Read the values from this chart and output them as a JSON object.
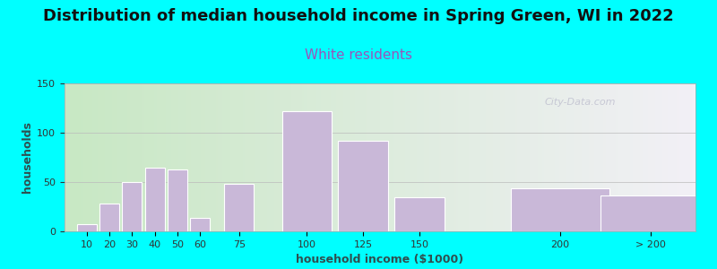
{
  "title": "Distribution of median household income in Spring Green, WI in 2022",
  "subtitle": "White residents",
  "xlabel": "household income ($1000)",
  "ylabel": "households",
  "bar_labels": [
    "10",
    "20",
    "30",
    "40",
    "50",
    "60",
    "75",
    "100",
    "125",
    "150",
    "200",
    "> 200"
  ],
  "bar_values": [
    7,
    28,
    50,
    65,
    63,
    14,
    48,
    122,
    92,
    35,
    44,
    36
  ],
  "bar_color": "#C9B8D8",
  "background_outer": "#00FFFF",
  "background_inner_left": "#C8E8C4",
  "background_inner_right": "#F2F0F6",
  "ylim": [
    0,
    150
  ],
  "yticks": [
    0,
    50,
    100,
    150
  ],
  "title_fontsize": 13,
  "subtitle_fontsize": 11,
  "subtitle_color": "#9955BB",
  "axis_label_fontsize": 9,
  "tick_fontsize": 8,
  "watermark": "City-Data.com"
}
